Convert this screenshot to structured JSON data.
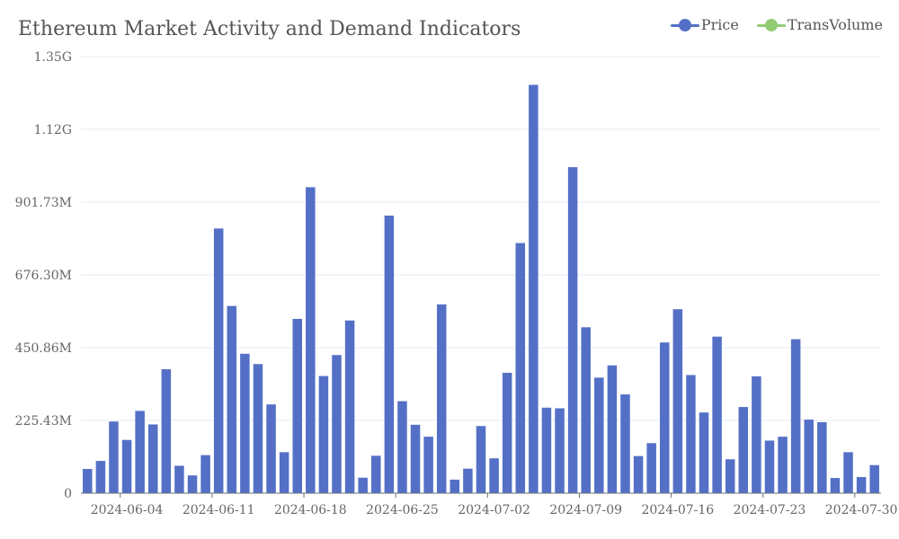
{
  "chart_data": {
    "type": "bar",
    "title": "Ethereum Market Activity and Demand Indicators",
    "legend": {
      "placement": "top-right",
      "items": [
        {
          "name": "Price",
          "color": "#5470c6"
        },
        {
          "name": "TransVolume",
          "color": "#91cc75"
        }
      ]
    },
    "y_ticks": [
      "0",
      "225.43M",
      "450.86M",
      "676.30M",
      "901.73M",
      "1.12G",
      "1.35G"
    ],
    "ylim": [
      0,
      1352600000
    ],
    "x_ticks": [
      "2024-06-04",
      "2024-06-11",
      "2024-06-18",
      "2024-06-25",
      "2024-07-02",
      "2024-07-09",
      "2024-07-16",
      "2024-07-23",
      "2024-07-30"
    ],
    "grid": true,
    "bar_color": "#5470c6",
    "series": [
      {
        "name": "TransVolume",
        "x": [
          "2024-06-01",
          "2024-06-02",
          "2024-06-03",
          "2024-06-04",
          "2024-06-05",
          "2024-06-06",
          "2024-06-07",
          "2024-06-08",
          "2024-06-09",
          "2024-06-10",
          "2024-06-11",
          "2024-06-12",
          "2024-06-13",
          "2024-06-14",
          "2024-06-15",
          "2024-06-16",
          "2024-06-17",
          "2024-06-18",
          "2024-06-19",
          "2024-06-20",
          "2024-06-21",
          "2024-06-22",
          "2024-06-23",
          "2024-06-24",
          "2024-06-25",
          "2024-06-26",
          "2024-06-27",
          "2024-06-28",
          "2024-06-29",
          "2024-06-30",
          "2024-07-01",
          "2024-07-02",
          "2024-07-03",
          "2024-07-04",
          "2024-07-05",
          "2024-07-06",
          "2024-07-07",
          "2024-07-08",
          "2024-07-09",
          "2024-07-10",
          "2024-07-11",
          "2024-07-12",
          "2024-07-13",
          "2024-07-14",
          "2024-07-15",
          "2024-07-16",
          "2024-07-17",
          "2024-07-18",
          "2024-07-19",
          "2024-07-20",
          "2024-07-21",
          "2024-07-22",
          "2024-07-23",
          "2024-07-24",
          "2024-07-25",
          "2024-07-26",
          "2024-07-27",
          "2024-07-28",
          "2024-07-29",
          "2024-07-30",
          "2024-07-31"
        ],
        "values": [
          75000000,
          100000000,
          222000000,
          165000000,
          255000000,
          213000000,
          384000000,
          85000000,
          55000000,
          118000000,
          820000000,
          580000000,
          432000000,
          400000000,
          275000000,
          127000000,
          540000000,
          948000000,
          363000000,
          428000000,
          535000000,
          48000000,
          116000000,
          860000000,
          285000000,
          212000000,
          175000000,
          585000000,
          42000000,
          76000000,
          208000000,
          108000000,
          373000000,
          775000000,
          1265000000,
          265000000,
          263000000,
          1010000000,
          514000000,
          358000000,
          396000000,
          306000000,
          115000000,
          155000000,
          467000000,
          570000000,
          366000000,
          250000000,
          485000000,
          105000000,
          267000000,
          362000000,
          163000000,
          175000000,
          477000000,
          228000000,
          220000000,
          47000000,
          127000000,
          50000000,
          87000000
        ]
      }
    ]
  }
}
